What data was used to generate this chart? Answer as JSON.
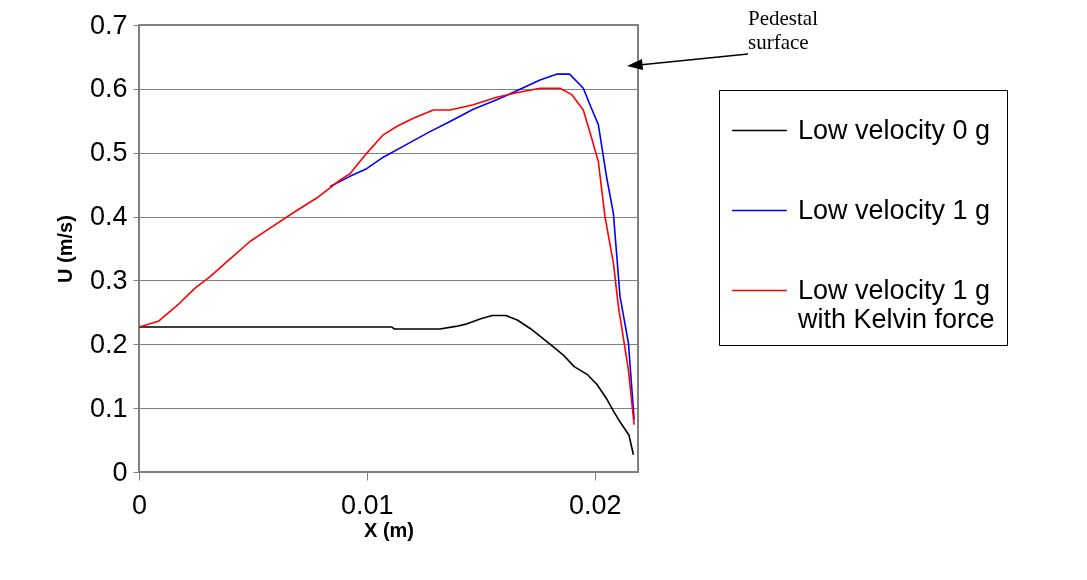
{
  "chart_data": {
    "type": "line",
    "xlabel": "X (m)",
    "ylabel": "U (m/s)",
    "xlim": [
      0,
      0.0219
    ],
    "xticks": [
      0,
      0.01,
      0.02
    ],
    "ylim": [
      0,
      0.7
    ],
    "yticks": [
      0,
      0.1,
      0.2,
      0.3,
      0.4,
      0.5,
      0.6,
      0.7
    ],
    "grid": "y",
    "legend": "right",
    "marker": "none",
    "line_style": "solid",
    "annotations": [
      "Pedestal surface"
    ],
    "series": [
      {
        "name": "Low velocity 0 g",
        "color": "#000000",
        "x": [
          0,
          0.0111,
          0.0112,
          0.0132,
          0.0139,
          0.0144,
          0.015,
          0.0155,
          0.0161,
          0.0166,
          0.0172,
          0.0179,
          0.0186,
          0.0191,
          0.0197,
          0.0201,
          0.0205,
          0.0208,
          0.0211,
          0.0215,
          0.0217
        ],
        "values": [
          0.227,
          0.227,
          0.224,
          0.224,
          0.228,
          0.232,
          0.24,
          0.245,
          0.245,
          0.238,
          0.224,
          0.204,
          0.184,
          0.165,
          0.152,
          0.137,
          0.116,
          0.097,
          0.079,
          0.058,
          0.027
        ]
      },
      {
        "name": "Low velocity 1 g",
        "color": "#0000ff",
        "x": [
          0.00838,
          0.00926,
          0.00999,
          0.01072,
          0.01175,
          0.01277,
          0.01365,
          0.01467,
          0.0157,
          0.01658,
          0.0176,
          0.01832,
          0.0189,
          0.0195,
          0.01985,
          0.02016,
          0.02053,
          0.02082,
          0.02111,
          0.02148,
          0.02173
        ],
        "values": [
          0.447,
          0.463,
          0.475,
          0.493,
          0.513,
          0.533,
          0.549,
          0.568,
          0.583,
          0.597,
          0.614,
          0.623,
          0.623,
          0.601,
          0.57,
          0.544,
          0.46,
          0.405,
          0.275,
          0.202,
          0.082
        ]
      },
      {
        "name": "Low velocity 1 g with Kelvin force",
        "color": "#ff0000",
        "x": [
          0,
          0.00085,
          0.0018,
          0.00246,
          0.00312,
          0.00385,
          0.00487,
          0.00575,
          0.00677,
          0.0078,
          0.00882,
          0.00926,
          0.00999,
          0.01072,
          0.01131,
          0.01204,
          0.01292,
          0.01365,
          0.01467,
          0.0157,
          0.01658,
          0.0176,
          0.01848,
          0.01899,
          0.0195,
          0.0198,
          0.02016,
          0.02045,
          0.02082,
          0.02104,
          0.02148,
          0.02173
        ],
        "values": [
          0.227,
          0.236,
          0.265,
          0.288,
          0.306,
          0.329,
          0.361,
          0.382,
          0.406,
          0.429,
          0.457,
          0.467,
          0.499,
          0.528,
          0.541,
          0.554,
          0.567,
          0.567,
          0.575,
          0.587,
          0.594,
          0.601,
          0.601,
          0.591,
          0.567,
          0.531,
          0.486,
          0.4,
          0.327,
          0.259,
          0.16,
          0.074
        ]
      }
    ]
  }
}
